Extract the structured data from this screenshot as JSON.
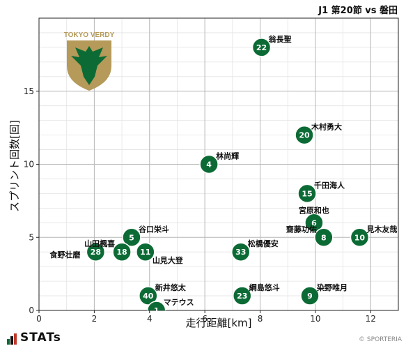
{
  "header": {
    "title": "J1 第20節 vs 磐田"
  },
  "footer": {
    "brand": "STATs",
    "copyright": "© SPORTERIA"
  },
  "team_logo": {
    "text": "TOKYO VERDY",
    "colors": {
      "shield": "#b59a5a",
      "eagle": "#0c6b35",
      "text": "#b59a5a"
    }
  },
  "chart_data": {
    "type": "scatter",
    "xlabel": "走行距離[km]",
    "ylabel": "スプリント回数[回]",
    "xlim": [
      0,
      13
    ],
    "ylim": [
      0,
      20
    ],
    "xticks": [
      0,
      2,
      4,
      6,
      8,
      10,
      12
    ],
    "yticks": [
      0,
      5,
      10,
      15
    ],
    "grid": true,
    "marker_color": "#0c6b35",
    "points": [
      {
        "number": "22",
        "name": "翁長聖",
        "x": 8.05,
        "y": 18,
        "label_pos": "right-up"
      },
      {
        "number": "20",
        "name": "木村勇大",
        "x": 9.6,
        "y": 12,
        "label_pos": "right-up"
      },
      {
        "number": "4",
        "name": "林尚輝",
        "x": 6.15,
        "y": 10,
        "label_pos": "right-up"
      },
      {
        "number": "15",
        "name": "千田海人",
        "x": 9.7,
        "y": 8,
        "label_pos": "right-up"
      },
      {
        "number": "6",
        "name": "宮原和也",
        "x": 9.95,
        "y": 6,
        "label_pos": "up"
      },
      {
        "number": "8",
        "name": "齋藤功佑",
        "x": 10.3,
        "y": 5,
        "label_pos": "left-up"
      },
      {
        "number": "10",
        "name": "見木友哉",
        "x": 11.6,
        "y": 5,
        "label_pos": "right-up"
      },
      {
        "number": "5",
        "name": "谷口栄斗",
        "x": 3.35,
        "y": 5,
        "label_pos": "right-up"
      },
      {
        "number": "28",
        "name": "食野壮磨",
        "x": 2.05,
        "y": 4,
        "label_pos": "left"
      },
      {
        "number": "18",
        "name": "山田楓喜",
        "x": 3.0,
        "y": 4,
        "label_pos": "left-up"
      },
      {
        "number": "11",
        "name": "山見大登",
        "x": 3.85,
        "y": 4,
        "label_pos": "right-down"
      },
      {
        "number": "33",
        "name": "松橋優安",
        "x": 7.3,
        "y": 4,
        "label_pos": "right-up"
      },
      {
        "number": "40",
        "name": "新井悠太",
        "x": 3.95,
        "y": 1,
        "label_pos": "right-up"
      },
      {
        "number": "23",
        "name": "綱島悠斗",
        "x": 7.35,
        "y": 1,
        "label_pos": "right-up"
      },
      {
        "number": "9",
        "name": "染野唯月",
        "x": 9.8,
        "y": 1,
        "label_pos": "right-up"
      },
      {
        "number": "1",
        "name": "マテウス",
        "x": 4.25,
        "y": 0,
        "label_pos": "right-up"
      }
    ]
  }
}
